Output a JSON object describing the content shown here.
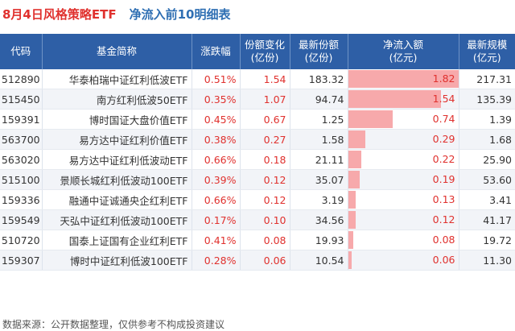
{
  "title": {
    "prefix": "8月4日风格策略ETF",
    "main": "净流入前10明细表"
  },
  "columns": {
    "code": "代码",
    "name": "基金简称",
    "change": "涨跌幅",
    "share_change_l1": "份额变化",
    "share_change_l2": "(亿份)",
    "share_l1": "最新份额",
    "share_l2": "(亿份)",
    "inflow_l1": "净流入额",
    "inflow_l2": "(亿元)",
    "scale_l1": "最新规模",
    "scale_l2": "(亿元)"
  },
  "chart_data": {
    "type": "table",
    "title": "8月4日风格策略ETF 净流入前10明细表",
    "columns": [
      "代码",
      "基金简称",
      "涨跌幅",
      "份额变化(亿份)",
      "最新份额(亿份)",
      "净流入额(亿元)",
      "最新规模(亿元)"
    ],
    "rows": [
      {
        "code": "512890",
        "name": "华泰柏瑞中证红利低波ETF",
        "change": "0.51%",
        "share_change": "1.54",
        "share": "183.32",
        "inflow": "1.82",
        "inflow_value": 1.82,
        "scale": "217.31"
      },
      {
        "code": "515450",
        "name": "南方红利低波50ETF",
        "change": "0.35%",
        "share_change": "1.07",
        "share": "94.74",
        "inflow": "1.54",
        "inflow_value": 1.54,
        "scale": "135.39"
      },
      {
        "code": "159391",
        "name": "博时国证大盘价值ETF",
        "change": "0.45%",
        "share_change": "0.67",
        "share": "1.25",
        "inflow": "0.74",
        "inflow_value": 0.74,
        "scale": "1.39"
      },
      {
        "code": "563700",
        "name": "易方达中证红利价值ETF",
        "change": "0.38%",
        "share_change": "0.27",
        "share": "1.58",
        "inflow": "0.29",
        "inflow_value": 0.29,
        "scale": "1.68"
      },
      {
        "code": "563020",
        "name": "易方达中证红利低波动ETF",
        "change": "0.66%",
        "share_change": "0.18",
        "share": "21.11",
        "inflow": "0.22",
        "inflow_value": 0.22,
        "scale": "25.90"
      },
      {
        "code": "515100",
        "name": "景顺长城红利低波动100ETF",
        "change": "0.39%",
        "share_change": "0.12",
        "share": "35.07",
        "inflow": "0.19",
        "inflow_value": 0.19,
        "scale": "53.60"
      },
      {
        "code": "159336",
        "name": "融通中证诚通央企红利ETF",
        "change": "0.66%",
        "share_change": "0.12",
        "share": "3.19",
        "inflow": "0.13",
        "inflow_value": 0.13,
        "scale": "3.41"
      },
      {
        "code": "159549",
        "name": "天弘中证红利低波动100ETF",
        "change": "0.17%",
        "share_change": "0.10",
        "share": "34.56",
        "inflow": "0.12",
        "inflow_value": 0.12,
        "scale": "41.17"
      },
      {
        "code": "510720",
        "name": "国泰上证国有企业红利ETF",
        "change": "0.41%",
        "share_change": "0.08",
        "share": "19.93",
        "inflow": "0.08",
        "inflow_value": 0.08,
        "scale": "19.72"
      },
      {
        "code": "159307",
        "name": "博时中证红利低波100ETF",
        "change": "0.28%",
        "share_change": "0.06",
        "share": "10.54",
        "inflow": "0.06",
        "inflow_value": 0.06,
        "scale": "11.30"
      }
    ]
  },
  "colors": {
    "header_bg": "#2e5fa6",
    "title_red": "#e0312e",
    "title_blue": "#2f6fb3",
    "bar": "#f7a9ab"
  },
  "source": "数据来源：公开数据整理，仅供参考不构成投资建议"
}
